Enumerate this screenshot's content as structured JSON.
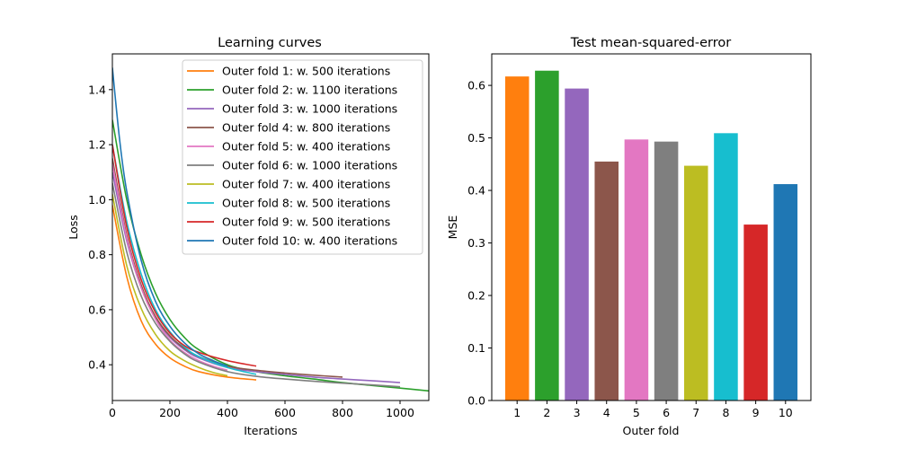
{
  "chart_data": [
    {
      "type": "line",
      "title": "Learning curves",
      "xlabel": "Iterations",
      "ylabel": "Loss",
      "xlim": [
        0,
        1100
      ],
      "ylim": [
        0.27,
        1.53
      ],
      "xticks": [
        0,
        200,
        400,
        600,
        800,
        1000
      ],
      "yticks": [
        0.4,
        0.6,
        0.8,
        1.0,
        1.2,
        1.4
      ],
      "xtick_labels": [
        "0",
        "200",
        "400",
        "600",
        "800",
        "1000"
      ],
      "ytick_labels": [
        "0.4",
        "0.6",
        "0.8",
        "1.0",
        "1.2",
        "1.4"
      ],
      "grid": false,
      "legend_position": "top-right",
      "series": [
        {
          "name": "Outer fold 1: w. 500 iterations",
          "color": "#ff7f0e",
          "x": [
            0,
            50,
            100,
            150,
            200,
            250,
            300,
            400,
            500
          ],
          "y": [
            0.98,
            0.72,
            0.56,
            0.475,
            0.425,
            0.395,
            0.375,
            0.355,
            0.345
          ]
        },
        {
          "name": "Outer fold 2: w. 1100 iterations",
          "color": "#2ca02c",
          "x": [
            0,
            50,
            100,
            150,
            200,
            250,
            300,
            400,
            500,
            600,
            700,
            800,
            900,
            1000,
            1100
          ],
          "y": [
            1.29,
            1.0,
            0.8,
            0.66,
            0.565,
            0.5,
            0.455,
            0.4,
            0.375,
            0.36,
            0.348,
            0.335,
            0.325,
            0.315,
            0.305
          ]
        },
        {
          "name": "Outer fold 3: w. 1000 iterations",
          "color": "#9467bd",
          "x": [
            0,
            50,
            100,
            150,
            200,
            250,
            300,
            400,
            500,
            600,
            700,
            800,
            900,
            1000
          ],
          "y": [
            1.1,
            0.85,
            0.68,
            0.57,
            0.5,
            0.455,
            0.425,
            0.39,
            0.375,
            0.365,
            0.355,
            0.348,
            0.342,
            0.335
          ]
        },
        {
          "name": "Outer fold 4: w. 800 iterations",
          "color": "#8c564b",
          "x": [
            0,
            50,
            100,
            150,
            200,
            250,
            300,
            400,
            500,
            600,
            700,
            800
          ],
          "y": [
            1.15,
            0.87,
            0.69,
            0.575,
            0.505,
            0.46,
            0.43,
            0.395,
            0.38,
            0.37,
            0.362,
            0.355
          ]
        },
        {
          "name": "Outer fold 5: w. 400 iterations",
          "color": "#e377c2",
          "x": [
            0,
            50,
            100,
            150,
            200,
            250,
            300,
            350,
            400
          ],
          "y": [
            1.13,
            0.86,
            0.68,
            0.565,
            0.49,
            0.445,
            0.415,
            0.395,
            0.38
          ]
        },
        {
          "name": "Outer fold 6: w. 1000 iterations",
          "color": "#7f7f7f",
          "x": [
            0,
            50,
            100,
            150,
            200,
            250,
            300,
            400,
            500,
            600,
            700,
            800,
            900,
            1000
          ],
          "y": [
            1.06,
            0.81,
            0.65,
            0.55,
            0.485,
            0.44,
            0.41,
            0.375,
            0.358,
            0.348,
            0.34,
            0.333,
            0.327,
            0.32
          ]
        },
        {
          "name": "Outer fold 7: w. 400 iterations",
          "color": "#bcbd22",
          "x": [
            0,
            50,
            100,
            150,
            200,
            250,
            300,
            350,
            400
          ],
          "y": [
            1.02,
            0.76,
            0.605,
            0.51,
            0.45,
            0.415,
            0.39,
            0.372,
            0.36
          ]
        },
        {
          "name": "Outer fold 8: w. 500 iterations",
          "color": "#17becf",
          "x": [
            0,
            50,
            100,
            150,
            200,
            250,
            300,
            400,
            500
          ],
          "y": [
            1.2,
            0.92,
            0.73,
            0.6,
            0.52,
            0.465,
            0.43,
            0.39,
            0.365
          ]
        },
        {
          "name": "Outer fold 9: w. 500 iterations",
          "color": "#d62728",
          "x": [
            0,
            50,
            100,
            150,
            200,
            250,
            300,
            400,
            500
          ],
          "y": [
            1.2,
            0.9,
            0.71,
            0.59,
            0.515,
            0.47,
            0.445,
            0.415,
            0.395
          ]
        },
        {
          "name": "Outer fold 10: w. 400 iterations",
          "color": "#1f77b4",
          "x": [
            0,
            25,
            50,
            100,
            150,
            200,
            250,
            300,
            350,
            400
          ],
          "y": [
            1.48,
            1.22,
            1.03,
            0.78,
            0.63,
            0.54,
            0.48,
            0.44,
            0.415,
            0.395
          ]
        }
      ]
    },
    {
      "type": "bar",
      "title": "Test mean-squared-error",
      "xlabel": "Outer fold",
      "ylabel": "MSE",
      "categories": [
        "1",
        "2",
        "3",
        "4",
        "5",
        "6",
        "7",
        "8",
        "9",
        "10"
      ],
      "values": [
        0.617,
        0.628,
        0.594,
        0.455,
        0.497,
        0.493,
        0.447,
        0.509,
        0.335,
        0.412
      ],
      "colors": [
        "#ff7f0e",
        "#2ca02c",
        "#9467bd",
        "#8c564b",
        "#e377c2",
        "#7f7f7f",
        "#bcbd22",
        "#17becf",
        "#d62728",
        "#1f77b4"
      ],
      "ylim": [
        0,
        0.66
      ],
      "yticks": [
        0.0,
        0.1,
        0.2,
        0.3,
        0.4,
        0.5,
        0.6
      ],
      "ytick_labels": [
        "0.0",
        "0.1",
        "0.2",
        "0.3",
        "0.4",
        "0.5",
        "0.6"
      ],
      "grid": false
    }
  ]
}
